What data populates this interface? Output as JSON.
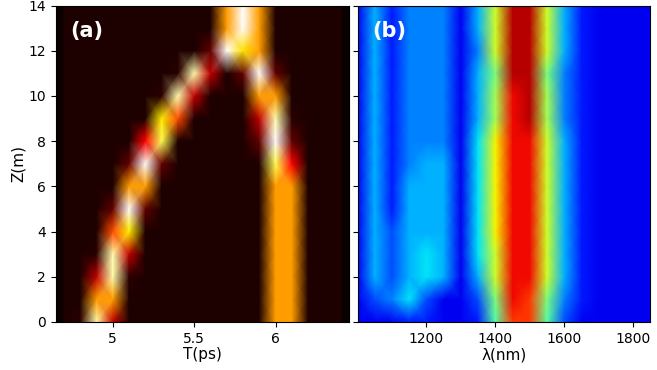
{
  "chart_data": [
    {
      "type": "heatmap",
      "annotations": [
        "(a)"
      ],
      "xlabel": "T(ps)",
      "ylabel": "Z(m)",
      "color": "hot",
      "xlim": [
        4.65,
        6.45
      ],
      "xticks": [
        5,
        5.5,
        6
      ],
      "ylim": [
        0,
        14
      ],
      "yticks": [
        0,
        2,
        4,
        6,
        8,
        10,
        12,
        14
      ],
      "x": [
        4.7,
        4.8,
        4.9,
        5.0,
        5.1,
        5.2,
        5.3,
        5.4,
        5.5,
        5.6,
        5.7,
        5.8,
        5.9,
        6.0,
        6.1,
        6.2,
        6.3,
        6.4
      ],
      "y": [
        0,
        1,
        2,
        3,
        4,
        5,
        6,
        7,
        8,
        9,
        10,
        11,
        12,
        13,
        14
      ],
      "cells": [
        [
          0.03,
          0.05,
          0.92,
          0.27,
          0.03,
          0.03,
          0.03,
          0.03,
          0.03,
          0.03,
          0.03,
          0.03,
          0.03,
          0.6,
          0.6,
          0.03,
          0.03,
          0.03
        ],
        [
          0.03,
          0.03,
          0.6,
          0.6,
          0.03,
          0.03,
          0.03,
          0.03,
          0.03,
          0.03,
          0.03,
          0.03,
          0.03,
          0.6,
          0.6,
          0.03,
          0.03,
          0.03
        ],
        [
          0.03,
          0.03,
          0.27,
          0.92,
          0.05,
          0.03,
          0.03,
          0.03,
          0.03,
          0.03,
          0.03,
          0.03,
          0.03,
          0.6,
          0.6,
          0.03,
          0.03,
          0.03
        ],
        [
          0.03,
          0.03,
          0.05,
          0.92,
          0.27,
          0.03,
          0.03,
          0.03,
          0.03,
          0.03,
          0.03,
          0.03,
          0.03,
          0.6,
          0.6,
          0.03,
          0.03,
          0.03
        ],
        [
          0.03,
          0.03,
          0.03,
          0.48,
          0.72,
          0.03,
          0.03,
          0.03,
          0.03,
          0.03,
          0.03,
          0.03,
          0.03,
          0.6,
          0.6,
          0.03,
          0.03,
          0.03
        ],
        [
          0.03,
          0.03,
          0.03,
          0.13,
          1.0,
          0.13,
          0.03,
          0.03,
          0.03,
          0.03,
          0.03,
          0.03,
          0.03,
          0.6,
          0.6,
          0.03,
          0.03,
          0.03
        ],
        [
          0.03,
          0.03,
          0.03,
          0.03,
          0.6,
          0.6,
          0.03,
          0.03,
          0.03,
          0.03,
          0.03,
          0.03,
          0.03,
          0.6,
          0.6,
          0.03,
          0.03,
          0.03
        ],
        [
          0.03,
          0.03,
          0.03,
          0.03,
          0.13,
          1.0,
          0.13,
          0.03,
          0.03,
          0.03,
          0.03,
          0.03,
          0.03,
          0.83,
          0.37,
          0.03,
          0.03,
          0.03
        ],
        [
          0.03,
          0.03,
          0.03,
          0.03,
          0.03,
          0.37,
          0.83,
          0.03,
          0.03,
          0.03,
          0.03,
          0.03,
          0.13,
          1.0,
          0.13,
          0.03,
          0.03,
          0.03
        ],
        [
          0.03,
          0.03,
          0.03,
          0.03,
          0.03,
          0.03,
          0.72,
          0.48,
          0.03,
          0.03,
          0.03,
          0.03,
          0.27,
          0.92,
          0.05,
          0.03,
          0.03,
          0.03
        ],
        [
          0.03,
          0.03,
          0.03,
          0.03,
          0.03,
          0.03,
          0.05,
          0.92,
          0.27,
          0.03,
          0.03,
          0.03,
          0.6,
          0.6,
          0.03,
          0.03,
          0.03,
          0.03
        ],
        [
          0.03,
          0.03,
          0.03,
          0.03,
          0.03,
          0.03,
          0.03,
          0.05,
          0.92,
          0.27,
          0.03,
          0.13,
          1.0,
          0.13,
          0.03,
          0.03,
          0.03,
          0.03
        ],
        [
          0.03,
          0.03,
          0.03,
          0.03,
          0.03,
          0.03,
          0.03,
          0.03,
          0.03,
          0.13,
          1.0,
          0.7,
          0.6,
          0.03,
          0.03,
          0.03,
          0.03,
          0.03
        ],
        [
          0.03,
          0.03,
          0.03,
          0.03,
          0.03,
          0.03,
          0.03,
          0.03,
          0.03,
          0.03,
          0.6,
          1.0,
          0.6,
          0.03,
          0.03,
          0.03,
          0.03,
          0.03
        ],
        [
          0.03,
          0.03,
          0.03,
          0.03,
          0.03,
          0.03,
          0.03,
          0.03,
          0.03,
          0.03,
          0.6,
          1.0,
          0.6,
          0.03,
          0.03,
          0.03,
          0.03,
          0.03
        ]
      ]
    },
    {
      "type": "heatmap",
      "annotations": [
        "(b)"
      ],
      "xlabel": "λ(nm)",
      "color": "jet",
      "tick_labels": "x",
      "xlim": [
        1000,
        1850
      ],
      "xticks": [
        1200,
        1400,
        1600,
        1800
      ],
      "ylim": [
        0,
        14
      ],
      "yticks": [
        0,
        2,
        4,
        6,
        8,
        10,
        12,
        14
      ],
      "x": [
        1000,
        1050,
        1100,
        1150,
        1200,
        1250,
        1300,
        1350,
        1400,
        1450,
        1500,
        1550,
        1600,
        1650,
        1700,
        1750,
        1800,
        1850
      ],
      "y": [
        0,
        1,
        2,
        3,
        4,
        5,
        6,
        7,
        8,
        9,
        10,
        11,
        12,
        13,
        14
      ],
      "cells": [
        [
          0.1,
          0.1,
          0.1,
          0.15,
          0.15,
          0.1,
          0.1,
          0.15,
          0.45,
          0.85,
          0.85,
          0.45,
          0.2,
          0.1,
          0.1,
          0.1,
          0.1,
          0.1
        ],
        [
          0.1,
          0.2,
          0.25,
          0.35,
          0.2,
          0.1,
          0.1,
          0.2,
          0.5,
          0.9,
          0.85,
          0.5,
          0.25,
          0.15,
          0.1,
          0.1,
          0.1,
          0.1
        ],
        [
          0.1,
          0.3,
          0.2,
          0.3,
          0.35,
          0.3,
          0.1,
          0.3,
          0.6,
          0.9,
          0.9,
          0.6,
          0.3,
          0.15,
          0.1,
          0.1,
          0.1,
          0.1
        ],
        [
          0.1,
          0.3,
          0.2,
          0.3,
          0.35,
          0.3,
          0.1,
          0.35,
          0.6,
          0.9,
          0.9,
          0.6,
          0.3,
          0.15,
          0.1,
          0.1,
          0.1,
          0.1
        ],
        [
          0.1,
          0.3,
          0.2,
          0.3,
          0.3,
          0.3,
          0.1,
          0.35,
          0.65,
          0.9,
          0.9,
          0.6,
          0.3,
          0.15,
          0.1,
          0.1,
          0.1,
          0.1
        ],
        [
          0.1,
          0.3,
          0.15,
          0.3,
          0.3,
          0.3,
          0.1,
          0.35,
          0.65,
          0.9,
          0.9,
          0.6,
          0.3,
          0.15,
          0.1,
          0.1,
          0.1,
          0.1
        ],
        [
          0.1,
          0.3,
          0.15,
          0.3,
          0.3,
          0.3,
          0.1,
          0.35,
          0.65,
          0.9,
          0.9,
          0.6,
          0.3,
          0.15,
          0.1,
          0.1,
          0.1,
          0.1
        ],
        [
          0.1,
          0.3,
          0.15,
          0.25,
          0.3,
          0.3,
          0.1,
          0.35,
          0.65,
          0.9,
          0.9,
          0.6,
          0.3,
          0.15,
          0.1,
          0.1,
          0.1,
          0.1
        ],
        [
          0.1,
          0.3,
          0.15,
          0.25,
          0.25,
          0.25,
          0.1,
          0.35,
          0.65,
          0.9,
          0.9,
          0.6,
          0.3,
          0.15,
          0.1,
          0.1,
          0.1,
          0.1
        ],
        [
          0.1,
          0.3,
          0.15,
          0.25,
          0.25,
          0.25,
          0.1,
          0.3,
          0.55,
          0.9,
          0.95,
          0.55,
          0.25,
          0.15,
          0.1,
          0.1,
          0.1,
          0.1
        ],
        [
          0.1,
          0.3,
          0.15,
          0.25,
          0.25,
          0.25,
          0.1,
          0.3,
          0.55,
          0.9,
          0.95,
          0.55,
          0.25,
          0.15,
          0.1,
          0.1,
          0.1,
          0.1
        ],
        [
          0.1,
          0.3,
          0.15,
          0.25,
          0.25,
          0.25,
          0.1,
          0.3,
          0.5,
          0.95,
          0.95,
          0.5,
          0.25,
          0.15,
          0.1,
          0.1,
          0.1,
          0.1
        ],
        [
          0.1,
          0.3,
          0.15,
          0.25,
          0.25,
          0.25,
          0.1,
          0.25,
          0.6,
          0.95,
          0.95,
          0.6,
          0.3,
          0.15,
          0.1,
          0.1,
          0.1,
          0.1
        ],
        [
          0.1,
          0.3,
          0.15,
          0.25,
          0.25,
          0.25,
          0.1,
          0.3,
          0.6,
          0.95,
          0.95,
          0.6,
          0.3,
          0.15,
          0.1,
          0.1,
          0.1,
          0.1
        ],
        [
          0.1,
          0.3,
          0.15,
          0.25,
          0.25,
          0.25,
          0.1,
          0.3,
          0.6,
          0.95,
          0.95,
          0.6,
          0.3,
          0.15,
          0.1,
          0.1,
          0.1,
          0.1
        ]
      ]
    }
  ]
}
